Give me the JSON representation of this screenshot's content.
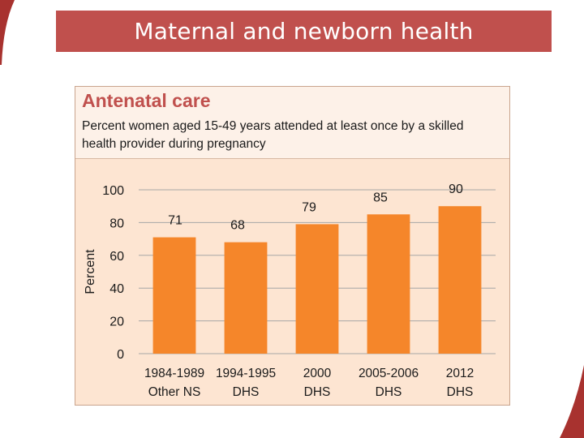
{
  "slide": {
    "title": "Maternal and newborn health"
  },
  "panel": {
    "title": "Antenatal care",
    "subtitle": "Percent women aged 15-49 years attended at least once by a skilled health provider during pregnancy"
  },
  "colors": {
    "banner": "#c0504d",
    "bar": "#f5862a",
    "panel_bg": "#fde5d2"
  },
  "chart_data": {
    "type": "bar",
    "categories": [
      [
        "1984-1989",
        "Other NS"
      ],
      [
        "1994-1995",
        "DHS"
      ],
      [
        "2000",
        "DHS"
      ],
      [
        "2005-2006",
        "DHS"
      ],
      [
        "2012",
        "DHS"
      ]
    ],
    "values": [
      71,
      68,
      79,
      85,
      90
    ],
    "data_labels": [
      "71",
      "68",
      "79",
      "85",
      "90"
    ],
    "ylabel": "Percent",
    "ylim": [
      0,
      100
    ],
    "yticks": [
      0,
      20,
      40,
      60,
      80,
      100
    ],
    "grid": true
  }
}
